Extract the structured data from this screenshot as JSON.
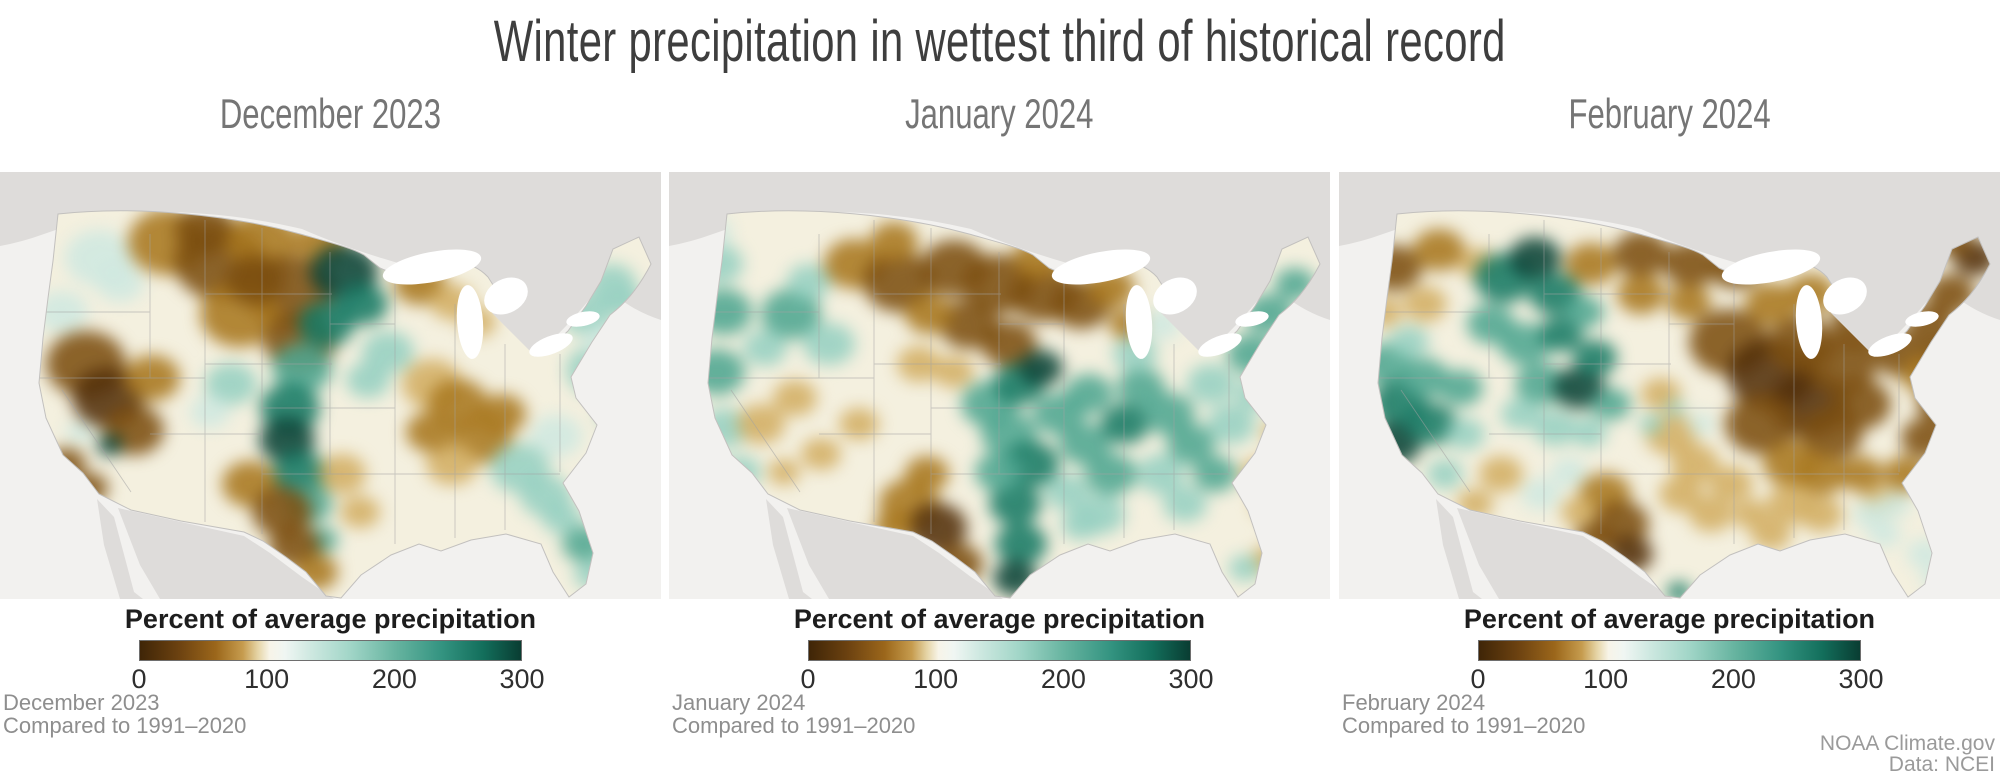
{
  "title": "Winter precipitation in wettest third of historical record",
  "legend": {
    "title": "Percent of average precipitation",
    "ticks": [
      "0",
      "100",
      "200",
      "300"
    ]
  },
  "credit": {
    "line1": "NOAA Climate.gov",
    "line2": "Data: NCEI"
  },
  "colors": {
    "title": "#3e3e3e",
    "subtitle": "#757575",
    "legend_title": "#1d1d1d",
    "tick": "#2f2f2f",
    "caption": "#8e8e8e",
    "credit": "#9a9a9a",
    "map": {
      "ocean": "#f2f1ef",
      "land": "#dedcda",
      "lake": "#ffffff",
      "state_line": "#a3a3a3",
      "coast": "#c2c0be",
      "base": "#f4f0df"
    },
    "palette": {
      "b4": "#53300a",
      "b3": "#7c4e10",
      "b2": "#a9771f",
      "b1": "#d3ae63",
      "t1": "#cfe8e0",
      "t2": "#96d0c1",
      "t3": "#4fa691",
      "t4": "#177a64",
      "t5": "#0a4337"
    },
    "colorbar_stops": [
      [
        0,
        "#3f2507"
      ],
      [
        10,
        "#6b4110"
      ],
      [
        20,
        "#9c671b"
      ],
      [
        27,
        "#c69c4e"
      ],
      [
        31,
        "#e6d5a7"
      ],
      [
        34,
        "#f7f4e8"
      ],
      [
        38,
        "#f0f6f3"
      ],
      [
        45,
        "#cde8e0"
      ],
      [
        55,
        "#a2d6c8"
      ],
      [
        67,
        "#67b4a0"
      ],
      [
        79,
        "#349481"
      ],
      [
        90,
        "#136f5c"
      ],
      [
        100,
        "#093d32"
      ]
    ]
  },
  "panels": [
    {
      "subtitle": "December 2023",
      "caption": {
        "line1": "December 2023",
        "line2": "Compared to 1991–2020"
      },
      "blobs": [
        [
          99,
          86,
          34,
          "t1"
        ],
        [
          62,
          140,
          26,
          "t1"
        ],
        [
          120,
          110,
          24,
          "t1"
        ],
        [
          168,
          70,
          40,
          "b2"
        ],
        [
          205,
          58,
          30,
          "b3"
        ],
        [
          220,
          90,
          46,
          "b3"
        ],
        [
          262,
          70,
          36,
          "b2"
        ],
        [
          290,
          120,
          44,
          "b3"
        ],
        [
          240,
          142,
          40,
          "b2"
        ],
        [
          300,
          170,
          36,
          "b3"
        ],
        [
          320,
          70,
          26,
          "b2"
        ],
        [
          255,
          108,
          30,
          "b3"
        ],
        [
          344,
          100,
          34,
          "t5"
        ],
        [
          362,
          132,
          26,
          "t4"
        ],
        [
          326,
          152,
          28,
          "t4"
        ],
        [
          302,
          196,
          30,
          "t3"
        ],
        [
          290,
          236,
          30,
          "t4"
        ],
        [
          287,
          268,
          28,
          "t5"
        ],
        [
          300,
          302,
          28,
          "t4"
        ],
        [
          308,
          332,
          24,
          "t3"
        ],
        [
          322,
          368,
          16,
          "t3"
        ],
        [
          231,
          212,
          26,
          "t2"
        ],
        [
          210,
          240,
          20,
          "t1"
        ],
        [
          388,
          180,
          26,
          "t2"
        ],
        [
          368,
          208,
          22,
          "t2"
        ],
        [
          86,
          192,
          40,
          "b3"
        ],
        [
          108,
          226,
          36,
          "b4"
        ],
        [
          134,
          258,
          30,
          "b3"
        ],
        [
          152,
          206,
          28,
          "b2"
        ],
        [
          66,
          292,
          20,
          "b3"
        ],
        [
          90,
          316,
          18,
          "b3"
        ],
        [
          110,
          273,
          13,
          "t5"
        ],
        [
          80,
          260,
          14,
          "t1"
        ],
        [
          250,
          312,
          28,
          "b2"
        ],
        [
          282,
          340,
          30,
          "b3"
        ],
        [
          295,
          374,
          26,
          "b3"
        ],
        [
          316,
          400,
          22,
          "b2"
        ],
        [
          342,
          302,
          24,
          "b1"
        ],
        [
          360,
          340,
          20,
          "b1"
        ],
        [
          420,
          112,
          26,
          "b2"
        ],
        [
          452,
          130,
          22,
          "b1"
        ],
        [
          478,
          150,
          18,
          "b1"
        ],
        [
          432,
          212,
          30,
          "b1"
        ],
        [
          458,
          232,
          30,
          "b2"
        ],
        [
          482,
          266,
          30,
          "b2"
        ],
        [
          452,
          292,
          26,
          "b1"
        ],
        [
          502,
          242,
          24,
          "b2"
        ],
        [
          430,
          260,
          24,
          "b2"
        ],
        [
          520,
          296,
          30,
          "t2"
        ],
        [
          556,
          264,
          26,
          "t1"
        ],
        [
          546,
          324,
          26,
          "t2"
        ],
        [
          584,
          372,
          22,
          "t3"
        ],
        [
          592,
          402,
          18,
          "t2"
        ],
        [
          562,
          346,
          20,
          "t2"
        ],
        [
          596,
          198,
          30,
          "t2"
        ],
        [
          586,
          142,
          26,
          "t2"
        ],
        [
          612,
          112,
          24,
          "t2"
        ],
        [
          618,
          242,
          20,
          "t2"
        ],
        [
          605,
          170,
          22,
          "t1"
        ],
        [
          625,
          130,
          20,
          "t2"
        ]
      ]
    },
    {
      "subtitle": "January 2024",
      "caption": {
        "line1": "January 2024",
        "line2": "Compared to 1991–2020"
      },
      "blobs": [
        [
          50,
          92,
          24,
          "t2"
        ],
        [
          55,
          140,
          28,
          "t3"
        ],
        [
          48,
          200,
          28,
          "t3"
        ],
        [
          56,
          256,
          24,
          "t2"
        ],
        [
          72,
          300,
          20,
          "t2"
        ],
        [
          45,
          60,
          18,
          "t1"
        ],
        [
          122,
          142,
          30,
          "t3"
        ],
        [
          160,
          172,
          26,
          "t2"
        ],
        [
          96,
          176,
          22,
          "t2"
        ],
        [
          140,
          110,
          22,
          "t2"
        ],
        [
          185,
          92,
          30,
          "b2"
        ],
        [
          230,
          110,
          36,
          "b3"
        ],
        [
          285,
          96,
          34,
          "b3"
        ],
        [
          330,
          112,
          36,
          "b3"
        ],
        [
          375,
          122,
          34,
          "b3"
        ],
        [
          300,
          152,
          30,
          "b3"
        ],
        [
          340,
          172,
          28,
          "b3"
        ],
        [
          260,
          142,
          24,
          "b2"
        ],
        [
          225,
          70,
          24,
          "b2"
        ],
        [
          370,
          86,
          26,
          "b2"
        ],
        [
          412,
          132,
          30,
          "b3"
        ],
        [
          442,
          116,
          24,
          "b2"
        ],
        [
          458,
          152,
          18,
          "b2"
        ],
        [
          250,
          192,
          22,
          "b1"
        ],
        [
          285,
          200,
          20,
          "b1"
        ],
        [
          92,
          252,
          24,
          "b1"
        ],
        [
          126,
          226,
          22,
          "b1"
        ],
        [
          152,
          282,
          20,
          "b1"
        ],
        [
          190,
          252,
          20,
          "b1"
        ],
        [
          115,
          300,
          16,
          "b1"
        ],
        [
          240,
          332,
          30,
          "b2"
        ],
        [
          268,
          356,
          30,
          "b4"
        ],
        [
          290,
          392,
          24,
          "b3"
        ],
        [
          258,
          302,
          22,
          "b2"
        ],
        [
          225,
          355,
          20,
          "b2"
        ],
        [
          320,
          232,
          28,
          "t3"
        ],
        [
          350,
          212,
          26,
          "t4"
        ],
        [
          372,
          196,
          22,
          "t5"
        ],
        [
          340,
          262,
          28,
          "t3"
        ],
        [
          362,
          292,
          28,
          "t4"
        ],
        [
          346,
          332,
          26,
          "t4"
        ],
        [
          352,
          372,
          26,
          "t4"
        ],
        [
          346,
          406,
          22,
          "t5"
        ],
        [
          330,
          300,
          24,
          "t3"
        ],
        [
          390,
          242,
          26,
          "t3"
        ],
        [
          420,
          222,
          24,
          "t3"
        ],
        [
          416,
          272,
          26,
          "t3"
        ],
        [
          442,
          302,
          26,
          "t3"
        ],
        [
          432,
          342,
          24,
          "t2"
        ],
        [
          456,
          252,
          24,
          "t4"
        ],
        [
          472,
          216,
          24,
          "t3"
        ],
        [
          500,
          242,
          26,
          "t3"
        ],
        [
          522,
          272,
          24,
          "t3"
        ],
        [
          492,
          302,
          24,
          "t2"
        ],
        [
          516,
          332,
          22,
          "t2"
        ],
        [
          546,
          302,
          22,
          "t3"
        ],
        [
          562,
          252,
          24,
          "t2"
        ],
        [
          542,
          212,
          24,
          "t2"
        ],
        [
          582,
          182,
          24,
          "t3"
        ],
        [
          600,
          142,
          24,
          "t3"
        ],
        [
          626,
          112,
          20,
          "t3"
        ],
        [
          586,
          222,
          20,
          "t2"
        ],
        [
          466,
          182,
          22,
          "t2"
        ],
        [
          492,
          152,
          20,
          "t1"
        ],
        [
          412,
          352,
          20,
          "t2"
        ],
        [
          398,
          320,
          22,
          "t2"
        ],
        [
          612,
          262,
          18,
          "b1"
        ],
        [
          592,
          302,
          20,
          "b1"
        ],
        [
          602,
          332,
          18,
          "b1"
        ],
        [
          600,
          388,
          18,
          "b1"
        ],
        [
          576,
          396,
          16,
          "t2"
        ]
      ]
    },
    {
      "subtitle": "February 2024",
      "caption": {
        "line1": "February 2024",
        "line2": "Compared to 1991–2020"
      },
      "blobs": [
        [
          55,
          96,
          28,
          "b3"
        ],
        [
          100,
          78,
          26,
          "b2"
        ],
        [
          86,
          132,
          22,
          "b1"
        ],
        [
          140,
          92,
          20,
          "b1"
        ],
        [
          45,
          140,
          18,
          "b1"
        ],
        [
          165,
          106,
          30,
          "t4"
        ],
        [
          196,
          86,
          26,
          "t5"
        ],
        [
          216,
          122,
          26,
          "t4"
        ],
        [
          152,
          152,
          24,
          "t3"
        ],
        [
          186,
          172,
          26,
          "t3"
        ],
        [
          222,
          162,
          22,
          "t4"
        ],
        [
          245,
          140,
          20,
          "t3"
        ],
        [
          252,
          92,
          26,
          "b2"
        ],
        [
          302,
          82,
          28,
          "b3"
        ],
        [
          352,
          92,
          28,
          "b3"
        ],
        [
          396,
          96,
          26,
          "b3"
        ],
        [
          302,
          122,
          24,
          "b2"
        ],
        [
          350,
          130,
          22,
          "b2"
        ],
        [
          48,
          192,
          26,
          "t3"
        ],
        [
          60,
          232,
          28,
          "t4"
        ],
        [
          56,
          272,
          26,
          "t5"
        ],
        [
          92,
          252,
          26,
          "t4"
        ],
        [
          86,
          206,
          24,
          "t3"
        ],
        [
          122,
          216,
          22,
          "t3"
        ],
        [
          126,
          262,
          20,
          "t2"
        ],
        [
          106,
          302,
          18,
          "t2"
        ],
        [
          70,
          170,
          20,
          "t2"
        ],
        [
          202,
          212,
          26,
          "t3"
        ],
        [
          240,
          216,
          26,
          "t5"
        ],
        [
          256,
          186,
          22,
          "t4"
        ],
        [
          272,
          232,
          20,
          "t3"
        ],
        [
          216,
          256,
          22,
          "t2"
        ],
        [
          182,
          242,
          20,
          "t2"
        ],
        [
          250,
          260,
          18,
          "t2"
        ],
        [
          162,
          302,
          22,
          "b1"
        ],
        [
          202,
          322,
          20,
          "t1"
        ],
        [
          136,
          332,
          18,
          "b1"
        ],
        [
          230,
          300,
          18,
          "t1"
        ],
        [
          390,
          170,
          40,
          "b3"
        ],
        [
          432,
          202,
          44,
          "b4"
        ],
        [
          470,
          232,
          40,
          "b4"
        ],
        [
          422,
          252,
          36,
          "b3"
        ],
        [
          462,
          172,
          34,
          "b3"
        ],
        [
          502,
          192,
          36,
          "b3"
        ],
        [
          522,
          152,
          30,
          "b3"
        ],
        [
          492,
          262,
          32,
          "b3"
        ],
        [
          522,
          232,
          30,
          "b3"
        ],
        [
          452,
          292,
          28,
          "b2"
        ],
        [
          482,
          302,
          26,
          "b2"
        ],
        [
          432,
          132,
          26,
          "b2"
        ],
        [
          472,
          122,
          24,
          "b2"
        ],
        [
          552,
          122,
          26,
          "b3"
        ],
        [
          562,
          182,
          28,
          "b3"
        ],
        [
          592,
          152,
          24,
          "b3"
        ],
        [
          612,
          122,
          24,
          "b3"
        ],
        [
          636,
          86,
          22,
          "b4"
        ],
        [
          616,
          70,
          18,
          "b3"
        ],
        [
          586,
          202,
          24,
          "b2"
        ],
        [
          602,
          232,
          24,
          "b3"
        ],
        [
          586,
          266,
          24,
          "b3"
        ],
        [
          566,
          302,
          22,
          "b2"
        ],
        [
          542,
          330,
          20,
          "b1"
        ],
        [
          522,
          302,
          22,
          "b2"
        ],
        [
          606,
          180,
          20,
          "b3"
        ],
        [
          266,
          322,
          26,
          "b2"
        ],
        [
          282,
          352,
          28,
          "b3"
        ],
        [
          292,
          382,
          22,
          "b4"
        ],
        [
          256,
          366,
          20,
          "b3"
        ],
        [
          240,
          340,
          18,
          "b1"
        ],
        [
          332,
          262,
          26,
          "b1"
        ],
        [
          356,
          292,
          24,
          "b1"
        ],
        [
          342,
          322,
          22,
          "b1"
        ],
        [
          372,
          342,
          22,
          "b1"
        ],
        [
          392,
          312,
          22,
          "b1"
        ],
        [
          322,
          222,
          20,
          "b1"
        ],
        [
          312,
          252,
          12,
          "t2"
        ],
        [
          336,
          236,
          10,
          "t2"
        ],
        [
          362,
          252,
          14,
          "t1"
        ],
        [
          452,
          332,
          24,
          "b1"
        ],
        [
          482,
          342,
          22,
          "b1"
        ],
        [
          432,
          362,
          20,
          "b1"
        ],
        [
          412,
          342,
          18,
          "b1"
        ],
        [
          532,
          342,
          18,
          "t1"
        ],
        [
          556,
          332,
          16,
          "t1"
        ],
        [
          546,
          362,
          16,
          "t1"
        ],
        [
          586,
          382,
          18,
          "t1"
        ],
        [
          596,
          406,
          14,
          "t1"
        ],
        [
          340,
          420,
          12,
          "t4"
        ]
      ]
    }
  ]
}
